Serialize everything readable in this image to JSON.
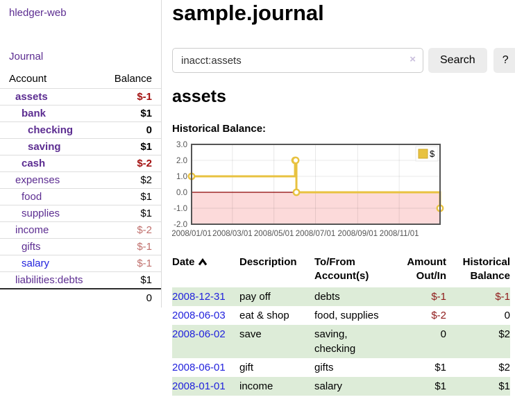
{
  "app": {
    "brand": "hledger-web"
  },
  "colors": {
    "link_purple": "#5c2d91",
    "link_blue": "#2222dd",
    "negative_strong": "#a31212",
    "negative_soft": "#c0706d",
    "register_negative": "#8f1a1a",
    "row_green": "#ddecd8",
    "chart_line_gold": "#e8c240",
    "chart_negative_area": "#fcdada",
    "chart_zero_line": "#8b0000"
  },
  "sidebar": {
    "nav": {
      "journal_label": "Journal"
    },
    "balance_table": {
      "col_account": "Account",
      "col_balance": "Balance",
      "accounts": [
        {
          "name": "assets",
          "depth": 1,
          "bold": true,
          "balance": "$-1",
          "neg": "strong"
        },
        {
          "name": "bank",
          "depth": 2,
          "bold": true,
          "balance": "$1",
          "neg": "none"
        },
        {
          "name": "checking",
          "depth": 3,
          "bold": true,
          "balance": "0",
          "neg": "none"
        },
        {
          "name": "saving",
          "depth": 3,
          "bold": true,
          "balance": "$1",
          "neg": "none"
        },
        {
          "name": "cash",
          "depth": 2,
          "bold": true,
          "balance": "$-2",
          "neg": "strong"
        },
        {
          "name": "expenses",
          "depth": 1,
          "bold": false,
          "balance": "$2",
          "neg": "none"
        },
        {
          "name": "food",
          "depth": 2,
          "bold": false,
          "balance": "$1",
          "neg": "none"
        },
        {
          "name": "supplies",
          "depth": 2,
          "bold": false,
          "balance": "$1",
          "neg": "none"
        },
        {
          "name": "income",
          "depth": 1,
          "bold": false,
          "balance": "$-2",
          "neg": "soft"
        },
        {
          "name": "gifts",
          "depth": 2,
          "bold": false,
          "balance": "$-1",
          "neg": "soft"
        },
        {
          "name": "salary",
          "depth": 2,
          "bold": false,
          "balance": "$-1",
          "neg": "soft",
          "link_color": "blue"
        },
        {
          "name": "liabilities:debts",
          "depth": 1,
          "bold": false,
          "balance": "$1",
          "neg": "none"
        }
      ],
      "total": "0"
    }
  },
  "header": {
    "title": "sample.journal"
  },
  "search": {
    "value": "inacct:assets",
    "clear_icon": "×",
    "button_label": "Search",
    "help_label": "?"
  },
  "account_page": {
    "heading": "assets",
    "chart_label": "Historical Balance:"
  },
  "chart_data": {
    "type": "line",
    "interpolation": "step-after",
    "title": "Historical Balance:",
    "series": [
      {
        "name": "$",
        "color": "#e8c240",
        "points": [
          [
            "2008-01-01",
            1
          ],
          [
            "2008-06-01",
            2
          ],
          [
            "2008-06-02",
            2
          ],
          [
            "2008-06-03",
            0
          ],
          [
            "2008-12-31",
            -1
          ]
        ]
      }
    ],
    "x_range": [
      "2008-01-01",
      "2008-12-31"
    ],
    "ylim": [
      -2.0,
      3.0
    ],
    "yticks": [
      3.0,
      2.0,
      1.0,
      0.0,
      -1.0,
      -2.0
    ],
    "xticks": [
      "2008/01/01",
      "2008/03/01",
      "2008/05/01",
      "2008/07/01",
      "2008/09/01",
      "2008/11/01"
    ],
    "grid": true,
    "negative_region_color": "#fcdada",
    "zero_line_color": "#8b0000",
    "legend": {
      "label": "$",
      "position": "top-right"
    }
  },
  "register": {
    "columns": {
      "date": "Date",
      "sort_icon": "chevron-up",
      "description": "Description",
      "account": "To/From Account(s)",
      "amount": "Amount Out/In",
      "balance": "Historical Balance"
    },
    "rows": [
      {
        "date": "2008-12-31",
        "description": "pay off",
        "accounts": "debts",
        "amount": "$-1",
        "balance": "$-1"
      },
      {
        "date": "2008-06-03",
        "description": "eat & shop",
        "accounts": "food, supplies",
        "amount": "$-2",
        "balance": "0"
      },
      {
        "date": "2008-06-02",
        "description": "save",
        "accounts": "saving, checking",
        "amount": "0",
        "balance": "$2"
      },
      {
        "date": "2008-06-01",
        "description": "gift",
        "accounts": "gifts",
        "amount": "$1",
        "balance": "$2"
      },
      {
        "date": "2008-01-01",
        "description": "income",
        "accounts": "salary",
        "amount": "$1",
        "balance": "$1"
      }
    ]
  }
}
